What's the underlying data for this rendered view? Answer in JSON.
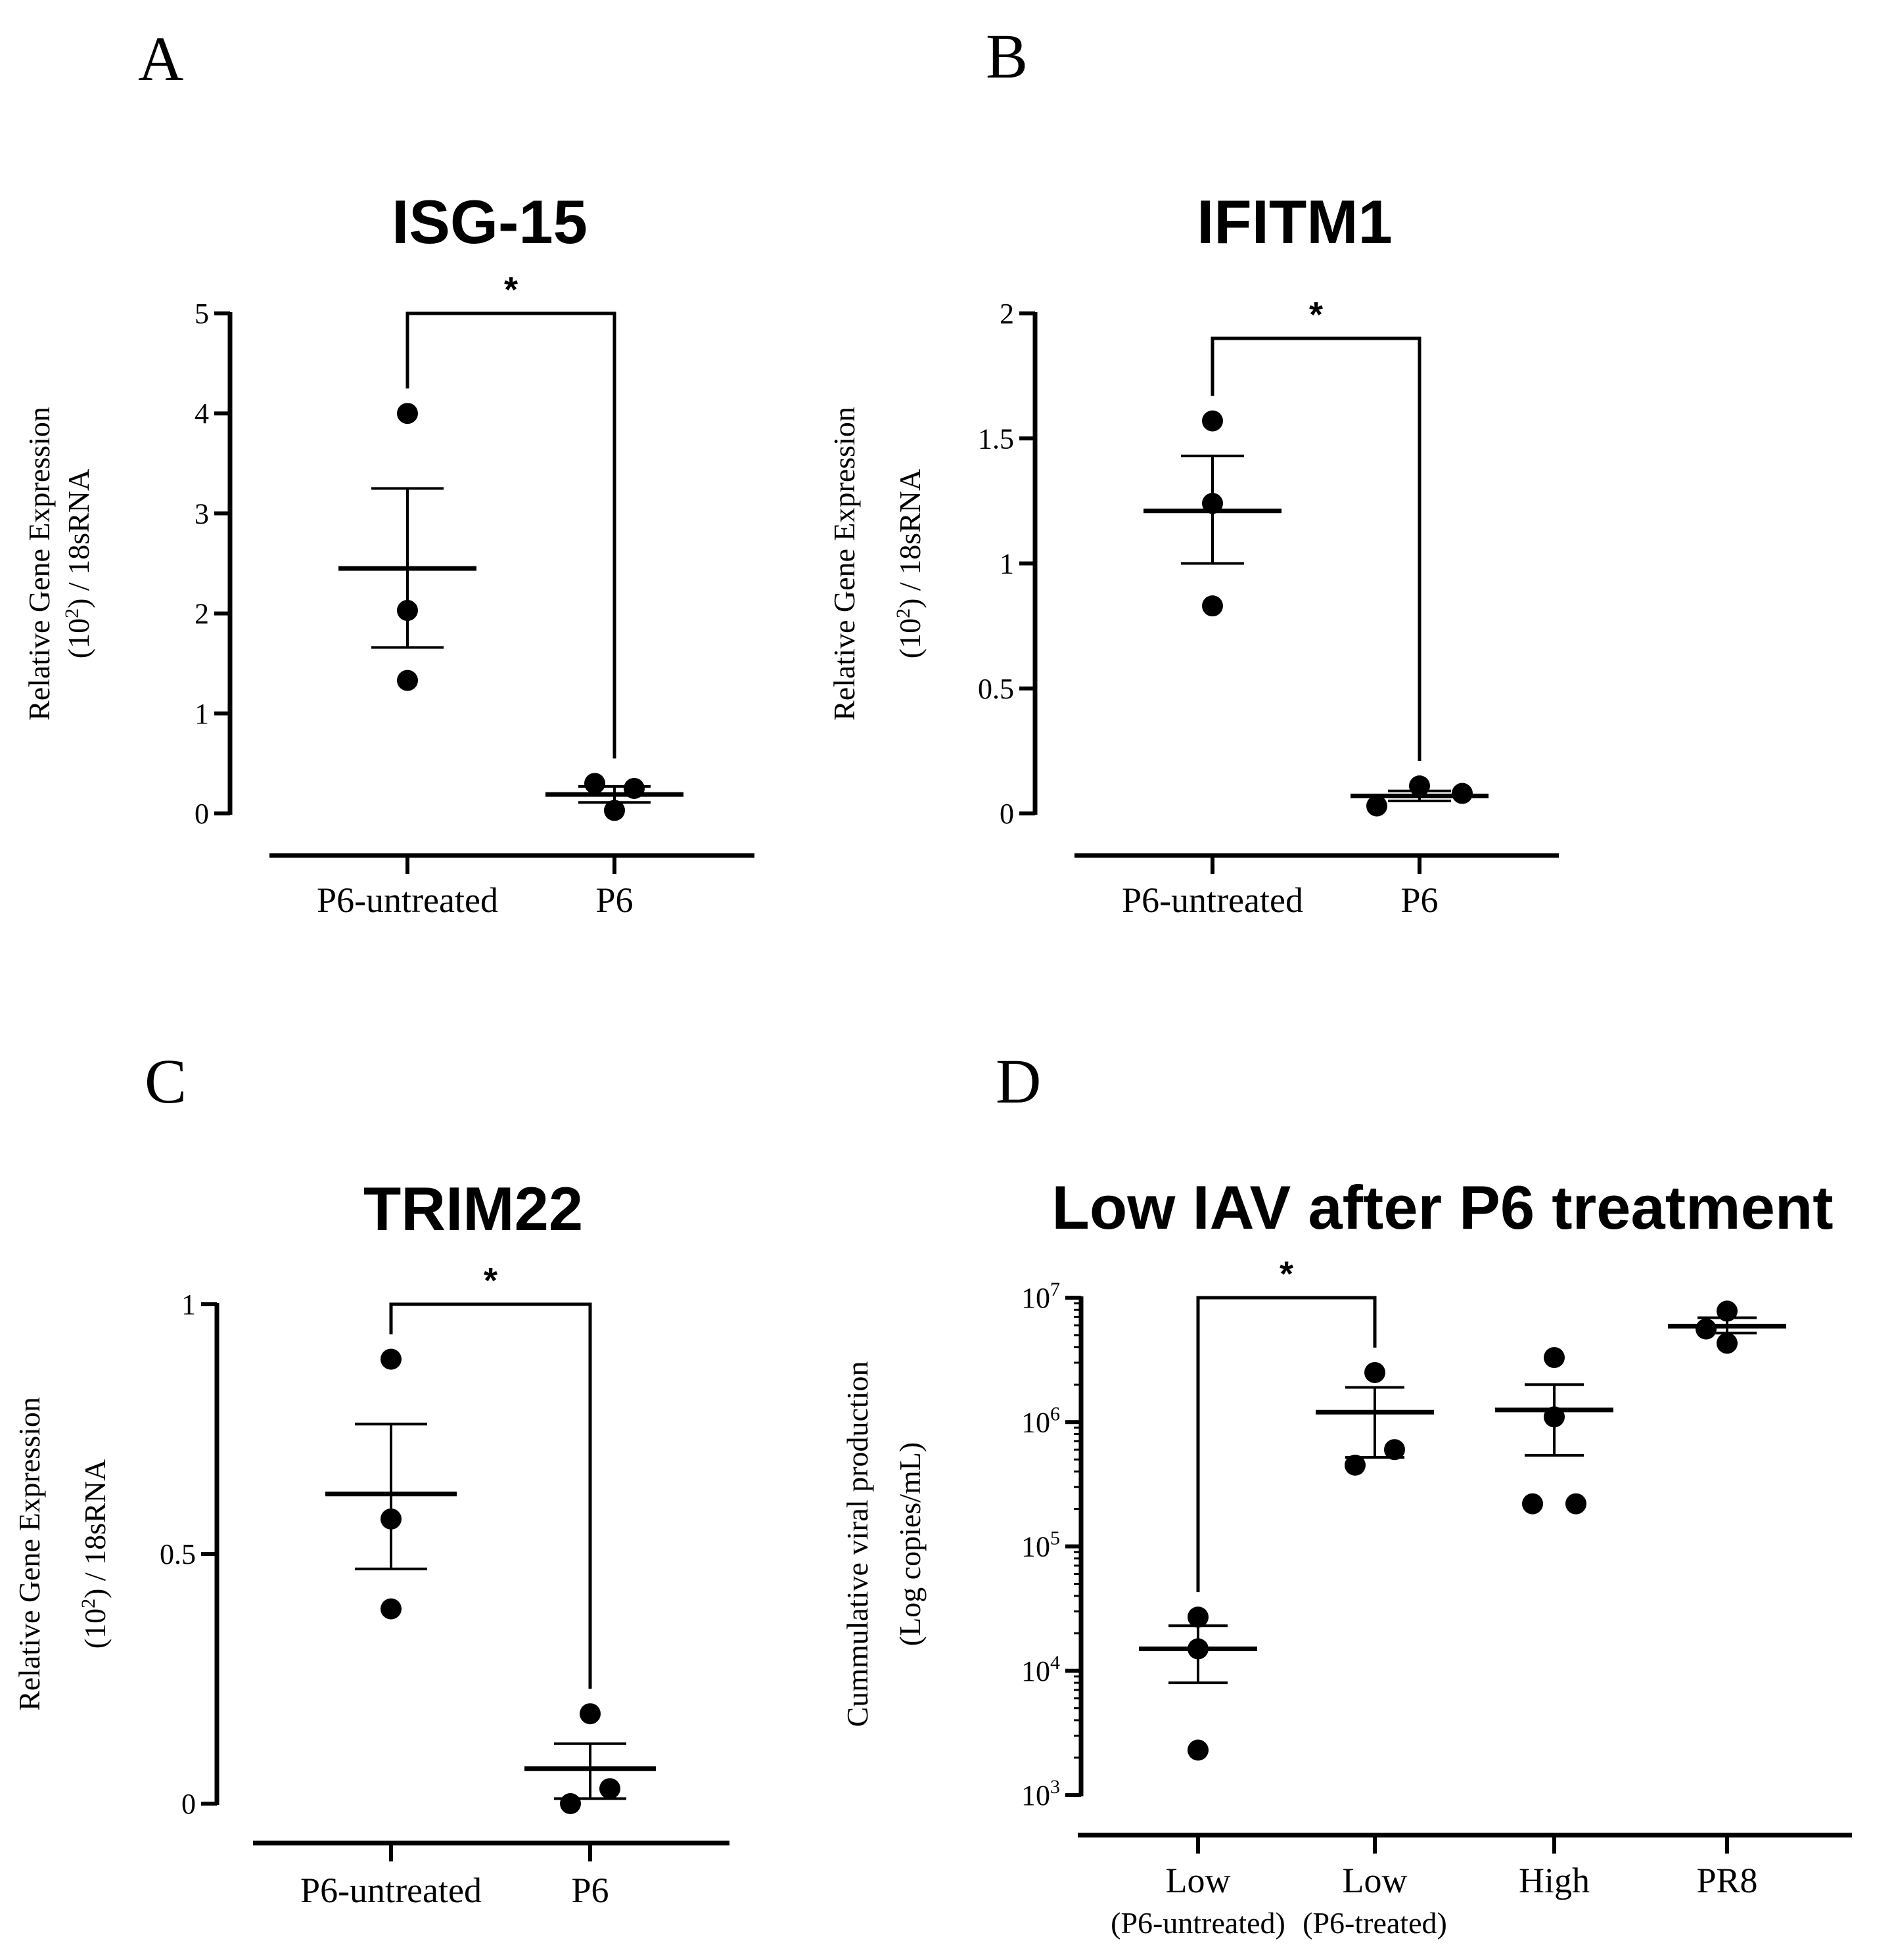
{
  "chart_data": [
    {
      "panel": "A",
      "type": "scatter",
      "title": "ISG-15",
      "ylabel": [
        "Relative Gene Expression",
        "(10",
        "2",
        ") / 18sRNA"
      ],
      "categories": [
        "P6-untreated",
        "P6"
      ],
      "ylim": [
        0,
        5
      ],
      "yticks": [
        "0",
        "1",
        "2",
        "3",
        "4",
        "5"
      ],
      "tickvals": [
        0,
        1,
        2,
        3,
        4,
        5
      ],
      "yscale": "linear",
      "groups": [
        {
          "name": "P6-untreated",
          "points": [
            4.0,
            2.03,
            1.33
          ],
          "mean": 2.45,
          "sem_low": 1.66,
          "sem_high": 3.25
        },
        {
          "name": "P6",
          "points": [
            0.3,
            0.25,
            0.03
          ],
          "mean": 0.19,
          "sem_low": 0.11,
          "sem_high": 0.27
        }
      ],
      "significance": {
        "from": 0,
        "to": 1,
        "label": "*",
        "level": 5.0
      }
    },
    {
      "panel": "B",
      "type": "scatter",
      "title": "IFITM1",
      "ylabel": [
        "Relative Gene Expression",
        "(10",
        "2",
        ") / 18sRNA"
      ],
      "categories": [
        "P6-untreated",
        "P6"
      ],
      "ylim": [
        0,
        2
      ],
      "yticks": [
        "0",
        "0.5",
        "1",
        "1.5",
        "2"
      ],
      "tickvals": [
        0,
        0.5,
        1,
        1.5,
        2
      ],
      "yscale": "linear",
      "groups": [
        {
          "name": "P6-untreated",
          "points": [
            1.57,
            1.24,
            0.83
          ],
          "mean": 1.21,
          "sem_low": 1.0,
          "sem_high": 1.43
        },
        {
          "name": "P6",
          "points": [
            0.11,
            0.08,
            0.03
          ],
          "mean": 0.07,
          "sem_low": 0.05,
          "sem_high": 0.09
        }
      ],
      "significance": {
        "from": 0,
        "to": 1,
        "label": "*",
        "level": 1.9
      }
    },
    {
      "panel": "C",
      "type": "scatter",
      "title": "TRIM22",
      "ylabel": [
        "Relative Gene Expression",
        "(10",
        "2",
        ") / 18sRNA"
      ],
      "categories": [
        "P6-untreated",
        "P6"
      ],
      "ylim": [
        0,
        1
      ],
      "yticks": [
        "0",
        "0.5",
        "1"
      ],
      "tickvals": [
        0,
        0.5,
        1
      ],
      "yscale": "linear",
      "groups": [
        {
          "name": "P6-untreated",
          "points": [
            0.89,
            0.57,
            0.39
          ],
          "mean": 0.62,
          "sem_low": 0.47,
          "sem_high": 0.76
        },
        {
          "name": "P6",
          "points": [
            0.18,
            0.03,
            0.0
          ],
          "mean": 0.07,
          "sem_low": 0.01,
          "sem_high": 0.12
        }
      ],
      "significance": {
        "from": 0,
        "to": 1,
        "label": "*",
        "level": 1.0
      }
    },
    {
      "panel": "D",
      "type": "scatter",
      "title": "Low IAV after P6 treatment",
      "ylabel": [
        "Cummulative viral production",
        "(Log copies/mL)"
      ],
      "categories": [
        "Low",
        "Low",
        "High",
        "PR8"
      ],
      "subcategories": [
        "(P6-untreated)",
        "(P6-treated)",
        "",
        ""
      ],
      "ylim": [
        1000,
        10000000
      ],
      "yticks": [
        "10",
        "10",
        "10",
        "10",
        "10"
      ],
      "ytick_exps": [
        "3",
        "4",
        "5",
        "6",
        "7"
      ],
      "tickvals": [
        1000,
        10000,
        100000,
        1000000,
        10000000
      ],
      "yscale": "log",
      "groups": [
        {
          "name": "Low (P6-untreated)",
          "points": [
            27000,
            15000,
            2300
          ],
          "mean": 15000,
          "sem_low": 8000,
          "sem_high": 23000
        },
        {
          "name": "Low (P6-treated)",
          "points": [
            2500000,
            600000,
            450000
          ],
          "mean": 1200000,
          "sem_low": 520000,
          "sem_high": 1900000
        },
        {
          "name": "High",
          "points": [
            3300000,
            1100000,
            220000,
            220000
          ],
          "mean": 1250000,
          "sem_low": 540000,
          "sem_high": 2000000
        },
        {
          "name": "PR8",
          "points": [
            7800000,
            5600000,
            4300000
          ],
          "mean": 5900000,
          "sem_low": 5200000,
          "sem_high": 6900000
        }
      ],
      "significance": {
        "from": 0,
        "to": 1,
        "label": "*",
        "level": 10000000
      }
    }
  ]
}
